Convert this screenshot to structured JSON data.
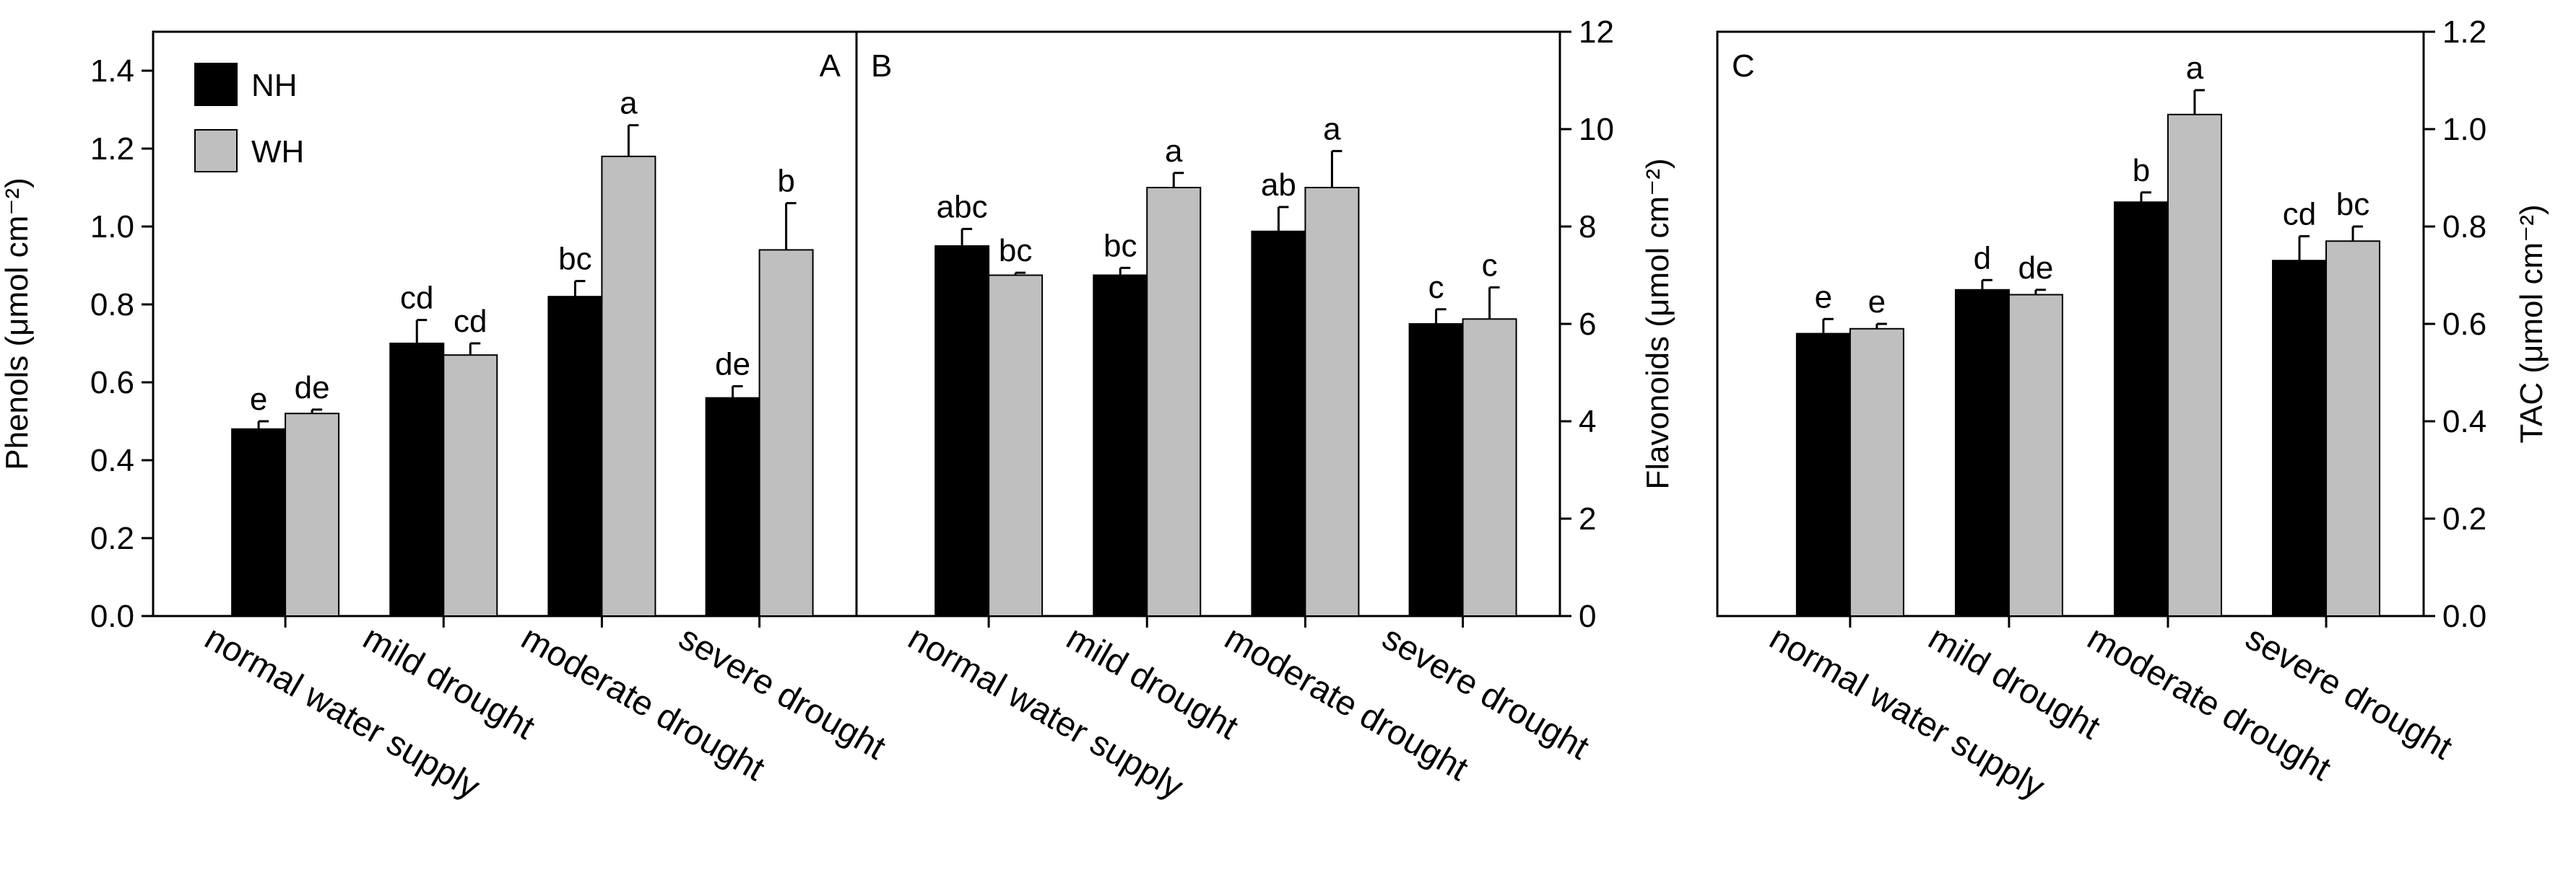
{
  "chart_data": [
    {
      "panel": "A",
      "type": "bar",
      "categories": [
        "normal water supply",
        "mild drought",
        "moderate drought",
        "severe drought"
      ],
      "series": [
        {
          "name": "NH",
          "color": "#000000",
          "values": [
            0.48,
            0.7,
            0.82,
            0.56
          ],
          "errors": [
            0.02,
            0.06,
            0.04,
            0.03
          ],
          "labels": [
            "e",
            "cd",
            "bc",
            "de"
          ]
        },
        {
          "name": "WH",
          "color": "#bfbfbf",
          "values": [
            0.52,
            0.67,
            1.18,
            0.94
          ],
          "errors": [
            0.01,
            0.03,
            0.08,
            0.12
          ],
          "labels": [
            "de",
            "cd",
            "a",
            "b"
          ]
        }
      ],
      "ylabel": "Phenols (μmol cm⁻²)",
      "ylim": [
        0,
        1.5
      ],
      "yticks": [
        0.0,
        0.2,
        0.4,
        0.6,
        0.8,
        1.0,
        1.2,
        1.4
      ],
      "ytick_labels": [
        "0.0",
        "0.2",
        "0.4",
        "0.6",
        "0.8",
        "1.0",
        "1.2",
        "1.4"
      ],
      "y_axis_side": "left",
      "legend": "top-left"
    },
    {
      "panel": "B",
      "type": "bar",
      "categories": [
        "normal water supply",
        "mild drought",
        "moderate drought",
        "severe drought"
      ],
      "series": [
        {
          "name": "NH",
          "color": "#000000",
          "values": [
            7.6,
            7.0,
            7.9,
            6.0
          ],
          "errors": [
            0.35,
            0.15,
            0.5,
            0.3
          ],
          "labels": [
            "abc",
            "bc",
            "ab",
            "c"
          ]
        },
        {
          "name": "WH",
          "color": "#bfbfbf",
          "values": [
            7.0,
            8.8,
            8.8,
            6.1
          ],
          "errors": [
            0.05,
            0.3,
            0.75,
            0.65
          ],
          "labels": [
            "bc",
            "a",
            "a",
            "c"
          ]
        }
      ],
      "ylabel": "Flavonoids (μmol cm⁻²)",
      "ylim": [
        0,
        12
      ],
      "yticks": [
        0,
        2,
        4,
        6,
        8,
        10,
        12
      ],
      "ytick_labels": [
        "0",
        "2",
        "4",
        "6",
        "8",
        "10",
        "12"
      ],
      "y_axis_side": "right"
    },
    {
      "panel": "C",
      "type": "bar",
      "categories": [
        "normal water supply",
        "mild drought",
        "moderate drought",
        "severe drought"
      ],
      "series": [
        {
          "name": "NH",
          "color": "#000000",
          "values": [
            0.58,
            0.67,
            0.85,
            0.73
          ],
          "errors": [
            0.03,
            0.02,
            0.02,
            0.05
          ],
          "labels": [
            "e",
            "d",
            "b",
            "cd"
          ]
        },
        {
          "name": "WH",
          "color": "#bfbfbf",
          "values": [
            0.59,
            0.66,
            1.03,
            0.77
          ],
          "errors": [
            0.01,
            0.01,
            0.05,
            0.03
          ],
          "labels": [
            "e",
            "de",
            "a",
            "bc"
          ]
        }
      ],
      "ylabel": "TAC (μmol cm⁻²)",
      "ylim": [
        0,
        1.2
      ],
      "yticks": [
        0.0,
        0.2,
        0.4,
        0.6,
        0.8,
        1.0,
        1.2
      ],
      "ytick_labels": [
        "0.0",
        "0.2",
        "0.4",
        "0.6",
        "0.8",
        "1.0",
        "1.2"
      ],
      "y_axis_side": "right"
    }
  ]
}
